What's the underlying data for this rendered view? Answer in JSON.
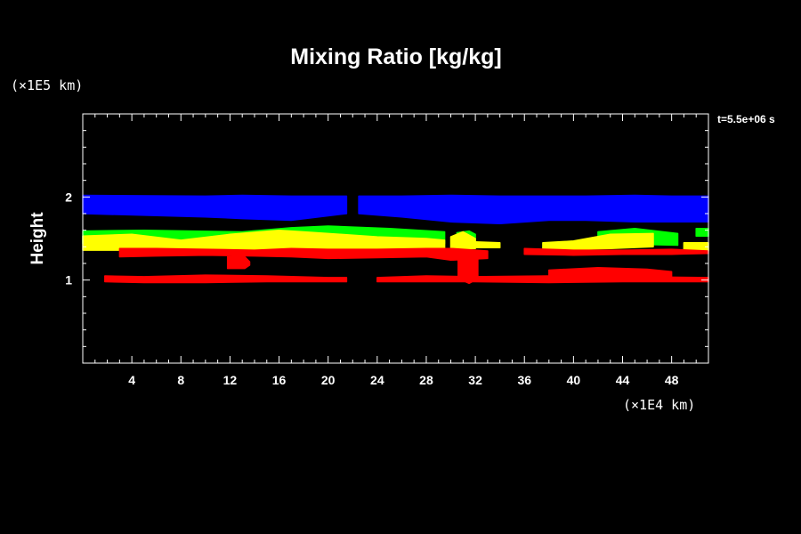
{
  "chart_data": {
    "type": "heatmap",
    "title": "Mixing Ratio [kg/kg]",
    "ylabel": "Height",
    "y_unit": "(×1E5 km)",
    "x_unit": "(×1E4 km)",
    "time_label": "t=5.5e+06 s",
    "xlim": [
      0,
      51
    ],
    "ylim": [
      0,
      3
    ],
    "x_ticks": [
      4,
      8,
      12,
      16,
      20,
      24,
      28,
      32,
      36,
      40,
      44,
      48
    ],
    "y_ticks": [
      1,
      2
    ],
    "background": "#000000",
    "grid": false,
    "layers": [
      {
        "color": "#0000ff",
        "bands": [
          {
            "x": [
              0,
              10,
              13,
              17,
              21.5
            ],
            "top": [
              2.02,
              2.01,
              2.02,
              2.01,
              2.01
            ],
            "bottom": [
              1.8,
              1.76,
              1.74,
              1.72,
              1.8
            ]
          },
          {
            "x": [
              22.5,
              26,
              30,
              34,
              38,
              41,
              45,
              48,
              51
            ],
            "top": [
              2.01,
              2.01,
              2.02,
              2.01,
              2.01,
              2.01,
              2.02,
              2.01,
              2.01
            ],
            "bottom": [
              1.8,
              1.76,
              1.7,
              1.68,
              1.72,
              1.72,
              1.7,
              1.7,
              1.7
            ]
          }
        ]
      },
      {
        "color": "#00ff00",
        "bands": [
          {
            "x": [
              0,
              5,
              13,
              17,
              20,
              25,
              29.5
            ],
            "top": [
              1.59,
              1.6,
              1.58,
              1.63,
              1.65,
              1.62,
              1.58
            ],
            "bottom": [
              1.44,
              1.46,
              1.44,
              1.44,
              1.45,
              1.44,
              1.44
            ]
          },
          {
            "x": [
              30.5,
              31.5,
              32
            ],
            "top": [
              1.57,
              1.59,
              1.55
            ],
            "bottom": [
              1.43,
              1.43,
              1.43
            ]
          },
          {
            "x": [
              42,
              45,
              48.5
            ],
            "top": [
              1.58,
              1.62,
              1.56
            ],
            "bottom": [
              1.42,
              1.43,
              1.42
            ]
          },
          {
            "x": [
              50,
              51
            ],
            "top": [
              1.62,
              1.62
            ],
            "bottom": [
              1.53,
              1.53
            ]
          }
        ]
      },
      {
        "color": "#ffff00",
        "bands": [
          {
            "x": [
              0,
              4,
              8,
              12,
              16,
              18,
              21,
              24,
              28,
              29.5
            ],
            "top": [
              1.53,
              1.55,
              1.48,
              1.55,
              1.6,
              1.58,
              1.55,
              1.52,
              1.5,
              1.48
            ],
            "bottom": [
              1.36,
              1.36,
              1.37,
              1.36,
              1.38,
              1.36,
              1.37,
              1.38,
              1.37,
              1.38
            ]
          },
          {
            "x": [
              30,
              31,
              32
            ],
            "top": [
              1.52,
              1.58,
              1.5
            ],
            "bottom": [
              1.38,
              1.38,
              1.38
            ]
          },
          {
            "x": [
              32,
              34
            ],
            "top": [
              1.46,
              1.45
            ],
            "bottom": [
              1.39,
              1.39
            ]
          },
          {
            "x": [
              37.5,
              40,
              43,
              46.5
            ],
            "top": [
              1.45,
              1.47,
              1.55,
              1.56
            ],
            "bottom": [
              1.37,
              1.37,
              1.38,
              1.4
            ]
          },
          {
            "x": [
              49,
              51
            ],
            "top": [
              1.45,
              1.45
            ],
            "bottom": [
              1.35,
              1.35
            ]
          }
        ]
      },
      {
        "color": "#ff0000",
        "bands": [
          {
            "x": [
              3,
              6,
              10,
              14,
              17,
              20,
              24,
              28,
              30,
              33
            ],
            "top": [
              1.38,
              1.38,
              1.37,
              1.36,
              1.38,
              1.37,
              1.37,
              1.38,
              1.38,
              1.35
            ],
            "bottom": [
              1.28,
              1.29,
              1.3,
              1.29,
              1.28,
              1.26,
              1.27,
              1.28,
              1.24,
              1.26
            ]
          },
          {
            "x": [
              11.8,
              13.2,
              13.6
            ],
            "top": [
              1.28,
              1.28,
              1.22
            ],
            "bottom": [
              1.14,
              1.14,
              1.18
            ]
          },
          {
            "x": [
              30.6,
              31.5,
              32.2
            ],
            "top": [
              1.3,
              1.3,
              1.3
            ],
            "bottom": [
              1.02,
              0.96,
              1.02
            ]
          },
          {
            "x": [
              36,
              40,
              44,
              48,
              51
            ],
            "top": [
              1.38,
              1.36,
              1.36,
              1.37,
              1.35
            ],
            "bottom": [
              1.31,
              1.3,
              1.31,
              1.31,
              1.32
            ]
          },
          {
            "x": [
              38,
              42,
              46,
              48
            ],
            "top": [
              1.12,
              1.15,
              1.13,
              1.1
            ],
            "bottom": [
              1.02,
              1.03,
              1.02,
              1.02
            ]
          },
          {
            "x": [
              1.8,
              5,
              10,
              15,
              20,
              21.5
            ],
            "top": [
              1.05,
              1.04,
              1.06,
              1.05,
              1.03,
              1.03
            ],
            "bottom": [
              0.98,
              0.97,
              0.97,
              0.98,
              0.98,
              0.98
            ]
          },
          {
            "x": [
              24,
              28,
              32,
              38,
              44,
              51
            ],
            "top": [
              1.03,
              1.05,
              1.04,
              1.05,
              1.04,
              1.03
            ],
            "bottom": [
              0.98,
              0.98,
              0.98,
              0.97,
              0.98,
              0.98
            ]
          }
        ]
      }
    ]
  }
}
